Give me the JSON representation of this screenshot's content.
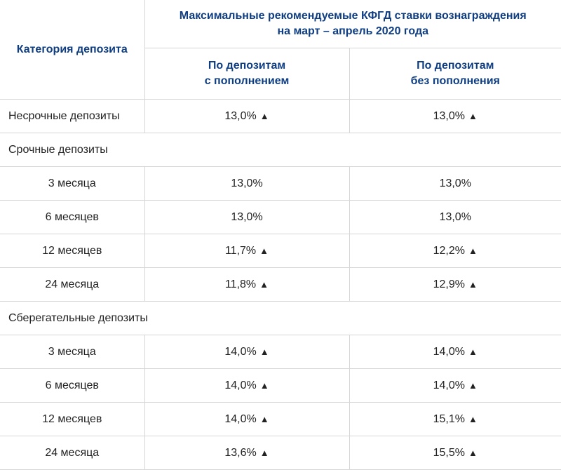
{
  "header": {
    "category": "Категория депозита",
    "main_line1": "Максимальные рекомендуемые КФГД ставки вознаграждения",
    "main_line2": "на март – апрель 2020 года",
    "col1_line1": "По депозитам",
    "col1_line2": "с пополнением",
    "col2_line1": "По депозитам",
    "col2_line2": "без пополнения"
  },
  "up_arrow": "▲",
  "rows": [
    {
      "label": "Несрочные депозиты",
      "v1": "13,0%",
      "v2": "13,0%"
    },
    {
      "section": "Срочные депозиты"
    },
    {
      "label": "3 месяца",
      "v1": "13,0%",
      "v2": "13,0%"
    },
    {
      "label": "6 месяцев",
      "v1": "13,0%",
      "v2": "13,0%"
    },
    {
      "label": "12 месяцев",
      "v1": "11,7%",
      "v2": "12,2%"
    },
    {
      "label": "24 месяца",
      "v1": "11,8%",
      "v2": "12,9%"
    },
    {
      "section": "Сберегательные депозиты"
    },
    {
      "label": "3 месяца",
      "v1": "14,0%",
      "v2": "14,0%"
    },
    {
      "label": "6 месяцев",
      "v1": "14,0%",
      "v2": "14,0%"
    },
    {
      "label": "12 месяцев",
      "v1": "14,0%",
      "v2": "15,1%"
    },
    {
      "label": "24 месяца",
      "v1": "13,6%",
      "v2": "15,5%"
    }
  ]
}
